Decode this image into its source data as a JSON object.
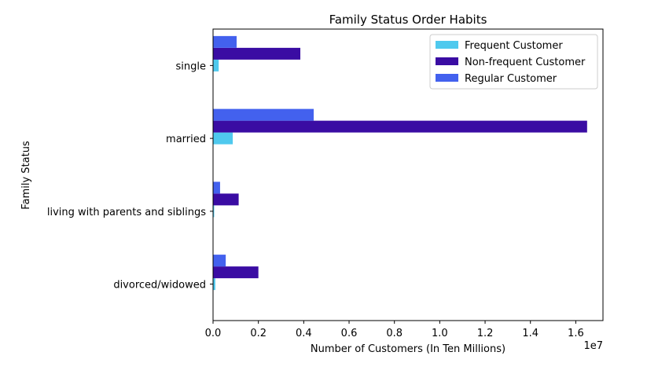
{
  "chart_data": {
    "type": "bar",
    "orientation": "horizontal",
    "title": "Family Status Order Habits",
    "xlabel": "Number of Customers (In Ten Millions)",
    "ylabel": "Family Status",
    "x_offset_label": "1e7",
    "xlim": [
      0,
      17200000
    ],
    "xticks": [
      0,
      2000000,
      4000000,
      6000000,
      8000000,
      10000000,
      12000000,
      14000000,
      16000000
    ],
    "xtick_labels": [
      "0.0",
      "0.2",
      "0.4",
      "0.6",
      "0.8",
      "1.0",
      "1.2",
      "1.4",
      "1.6"
    ],
    "categories": [
      "divorced/widowed",
      "living with parents and siblings",
      "married",
      "single"
    ],
    "series": [
      {
        "name": "Frequent Customer",
        "color": "#4fc9ee",
        "values": [
          100000,
          50000,
          870000,
          250000
        ]
      },
      {
        "name": "Non-frequent Customer",
        "color": "#3a0ca3",
        "values": [
          2000000,
          1130000,
          16500000,
          3850000
        ]
      },
      {
        "name": "Regular Customer",
        "color": "#4361ee",
        "values": [
          560000,
          310000,
          4440000,
          1040000
        ]
      }
    ],
    "legend_position": "top-right",
    "grid": false
  }
}
